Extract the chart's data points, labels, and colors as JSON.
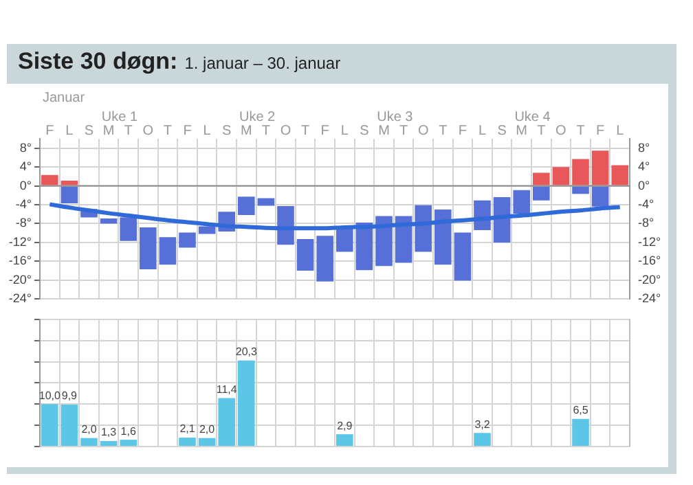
{
  "chart_data": [
    {
      "type": "bar",
      "title": "Siste 30 døgn:",
      "subtitle": "1. januar – 30. januar",
      "annotations": [
        "Januar",
        "Uke 1",
        "Uke 2",
        "Uke 3",
        "Uke 4"
      ],
      "categories": [
        "F",
        "L",
        "S",
        "M",
        "T",
        "O",
        "T",
        "F",
        "L",
        "S",
        "M",
        "T",
        "O",
        "T",
        "F",
        "L",
        "S",
        "M",
        "T",
        "O",
        "T",
        "F",
        "L",
        "S",
        "M",
        "T",
        "O",
        "T",
        "F",
        "L"
      ],
      "series": [
        {
          "color": "#e8585a",
          "base": [
            0,
            0,
            null,
            null,
            null,
            null,
            null,
            null,
            null,
            null,
            null,
            null,
            null,
            null,
            null,
            null,
            null,
            null,
            null,
            null,
            null,
            null,
            null,
            null,
            null,
            0,
            0,
            0,
            0,
            0
          ],
          "values": [
            2.3,
            1.1,
            null,
            null,
            null,
            null,
            null,
            null,
            null,
            null,
            null,
            null,
            null,
            null,
            null,
            null,
            null,
            null,
            null,
            null,
            null,
            null,
            null,
            null,
            null,
            2.8,
            4.0,
            5.7,
            7.5,
            4.4
          ]
        },
        {
          "color": "#5670d8",
          "base": [
            null,
            -3.7,
            -6.7,
            -8.0,
            -11.7,
            -17.7,
            -16.7,
            -13.1,
            -10.2,
            -9.7,
            -6.2,
            -4.2,
            -12.5,
            -18.0,
            -20.3,
            -14.0,
            -17.9,
            -17.0,
            -16.3,
            -14.0,
            -16.7,
            -20.1,
            -9.4,
            -12.0,
            -5.9,
            -3.1,
            null,
            -1.7,
            -4.4,
            null
          ],
          "values": [
            null,
            3.7,
            1.8,
            1.1,
            5.0,
            8.9,
            5.8,
            3.2,
            1.6,
            4.2,
            3.9,
            1.6,
            8.2,
            6.7,
            9.7,
            5.3,
            10.1,
            10.6,
            9.9,
            9.9,
            11.7,
            10.2,
            6.3,
            9.6,
            5.0,
            3.1,
            null,
            1.7,
            4.4,
            null
          ]
        },
        {
          "type": "line",
          "color": "#2f6ad8",
          "values": [
            -3.9,
            -4.6,
            -5.2,
            -5.8,
            -6.3,
            -6.8,
            -7.3,
            -7.7,
            -8.1,
            -8.5,
            -8.7,
            -8.9,
            -9.0,
            -9.0,
            -9.0,
            -8.8,
            -8.7,
            -8.5,
            -8.2,
            -8.0,
            -7.6,
            -7.3,
            -7.0,
            -6.6,
            -6.3,
            -5.9,
            -5.5,
            -5.2,
            -4.8,
            -4.5
          ]
        }
      ],
      "marker": "none",
      "ylim": [
        -24,
        10
      ],
      "yticks": [
        {
          "value": 8,
          "label": "8°"
        },
        {
          "value": 4,
          "label": "4°"
        },
        {
          "value": 0,
          "label": "0°"
        },
        {
          "value": -4,
          "label": "-4°"
        },
        {
          "value": -8,
          "label": "-8°"
        },
        {
          "value": -12,
          "label": "-12°"
        },
        {
          "value": -16,
          "label": "-16°"
        },
        {
          "value": -20,
          "label": "-20°"
        },
        {
          "value": -24,
          "label": "-24°"
        }
      ],
      "y2lim": [
        -24,
        10
      ],
      "y2ticks": [
        {
          "value": 8,
          "label": "8°"
        },
        {
          "value": 4,
          "label": "4°"
        },
        {
          "value": 0,
          "label": "0°"
        },
        {
          "value": -4,
          "label": "-4°"
        },
        {
          "value": -8,
          "label": "-8°"
        },
        {
          "value": -12,
          "label": "-12°"
        },
        {
          "value": -16,
          "label": "-16°"
        },
        {
          "value": -20,
          "label": "-20°"
        },
        {
          "value": -24,
          "label": "-24°"
        }
      ],
      "ref_lines": [
        {
          "axis": "y",
          "value": 0,
          "color": "#8a8a8a"
        }
      ],
      "grid": true,
      "legend": false
    },
    {
      "type": "bar",
      "categories": [
        null,
        null,
        null,
        null,
        null,
        null,
        null,
        null,
        null,
        null,
        null,
        null,
        null,
        null,
        null,
        null,
        null,
        null,
        null,
        null,
        null,
        null,
        null,
        null,
        null,
        null,
        null,
        null,
        null,
        null
      ],
      "values": [
        10.0,
        9.9,
        2.0,
        1.3,
        1.6,
        null,
        null,
        2.1,
        2.0,
        11.4,
        20.3,
        null,
        null,
        null,
        null,
        2.9,
        null,
        null,
        null,
        null,
        null,
        null,
        3.2,
        null,
        null,
        null,
        null,
        6.5,
        null,
        null
      ],
      "value_labels": [
        "10,0",
        "9,9",
        "2,0",
        "1,3",
        "1,6",
        null,
        null,
        "2,1",
        "2,0",
        "11,4",
        "20,3",
        null,
        null,
        null,
        null,
        "2,9",
        null,
        null,
        null,
        null,
        null,
        null,
        "3,2",
        null,
        null,
        null,
        null,
        "6,5",
        null,
        null
      ],
      "color": "#5cc6e6",
      "tick_labels": false,
      "grid": true,
      "legend": false
    }
  ]
}
